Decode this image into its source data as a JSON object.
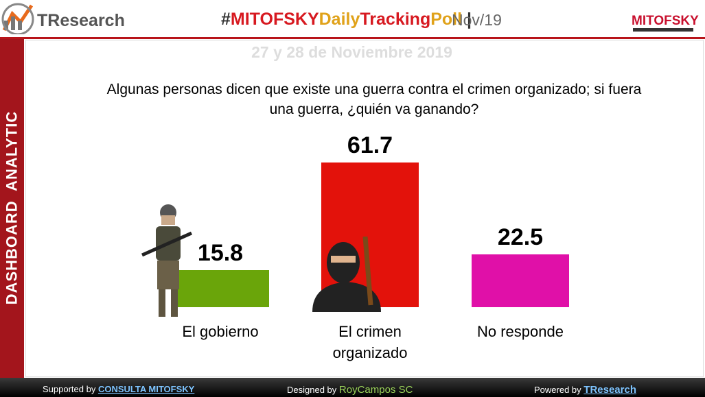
{
  "header": {
    "logo": "TResearch",
    "title_parts": [
      "#",
      "MITOFSKY",
      "Daily",
      "Tracking",
      "Poll",
      " |"
    ],
    "period": "Nov/19",
    "brand": "MITOFSKY"
  },
  "sidebar": "DASHBOARD  ANALYTIC",
  "chart_data": {
    "type": "bar",
    "subtitle": "27 y 28 de Noviembre 2019",
    "title": "Algunas personas dicen que existe una guerra contra el crimen organizado; si fuera una guerra, ¿quién va ganando?",
    "categories": [
      "El gobierno",
      "El crimen organizado",
      "No responde"
    ],
    "values": [
      15.8,
      61.7,
      22.5
    ],
    "colors": [
      "#6aa50a",
      "#e3120b",
      "#e010a8"
    ]
  },
  "footer": {
    "supported_label": "Supported by",
    "supported": "CONSULTA MITOFSKY",
    "designed_label": "Designed by",
    "designed": "RoyCampos SC",
    "powered_label": "Powered by",
    "powered": "TResearch"
  }
}
